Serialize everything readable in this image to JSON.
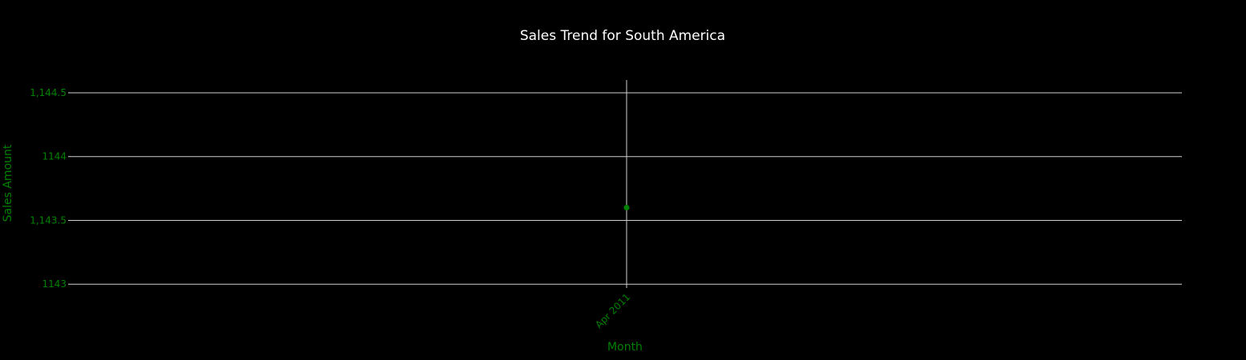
{
  "chart_data": {
    "type": "line",
    "title": "Sales Trend for South America",
    "xlabel": "Month",
    "ylabel": "Sales Amount",
    "x": [
      "Apr 2011"
    ],
    "x_tick_labels": [
      "Apr 2011"
    ],
    "series": [
      {
        "values": [
          1143.6
        ]
      }
    ],
    "y_ticks": [
      1143,
      1143.5,
      1144,
      1144.5
    ],
    "y_tick_labels": [
      "1143",
      "1,143.5",
      "1144",
      "1,144.5"
    ],
    "ylim": [
      1142.97,
      1144.6
    ],
    "grid": true,
    "legend": "none",
    "colors": {
      "background": "#000000",
      "title": "#ffffff",
      "axis_text": "#008000",
      "marker": "#008000",
      "grid": "#cfcfcf"
    }
  }
}
